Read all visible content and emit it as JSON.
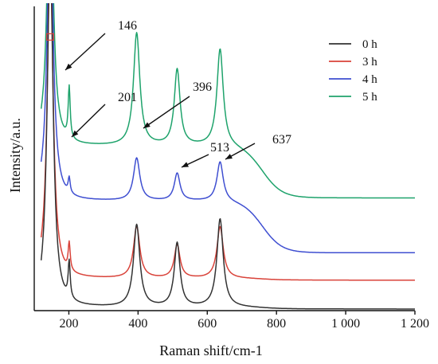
{
  "chart_data": {
    "type": "line",
    "title": "",
    "xlabel": "Raman shift/cm-1",
    "ylabel": "Intensity/a.u.",
    "xlim": [
      100,
      1200
    ],
    "ylim": [
      0,
      100
    ],
    "x_ticks": [
      200,
      400,
      600,
      800,
      1000,
      1200
    ],
    "x_tick_labels": [
      "200",
      "400",
      "600",
      "800",
      "1 000",
      "1 200"
    ],
    "y_ticks_shown": false,
    "grid": false,
    "legend_position": "top-right",
    "peaks": [
      {
        "position": 146,
        "label": "146"
      },
      {
        "position": 201,
        "label": "201"
      },
      {
        "position": 396,
        "label": "396"
      },
      {
        "position": 513,
        "label": "513"
      },
      {
        "position": 637,
        "label": "637"
      }
    ],
    "series": [
      {
        "name": "0 h",
        "color": "#333333",
        "baseline": 0.5,
        "tail": 0.5,
        "amplitudes": {
          "146": 120,
          "201": 12,
          "396": 27,
          "513": 21,
          "637": 29
        }
      },
      {
        "name": "3 h",
        "color": "#d9433a",
        "baseline": 10,
        "tail": 0.5,
        "amplitudes": {
          "146": 105,
          "201": 9,
          "396": 17,
          "513": 11,
          "637": 17
        }
      },
      {
        "name": "4 h",
        "color": "#3f4fd1",
        "baseline": 19,
        "tail": 17,
        "amplitudes": {
          "146": 100,
          "201": 5,
          "396": 14,
          "513": 9,
          "637": 13
        }
      },
      {
        "name": "5 h",
        "color": "#1fa36c",
        "baseline": 37,
        "tail": 17,
        "amplitudes": {
          "146": 95,
          "201": 17,
          "396": 37,
          "513": 25,
          "637": 32
        }
      }
    ]
  }
}
